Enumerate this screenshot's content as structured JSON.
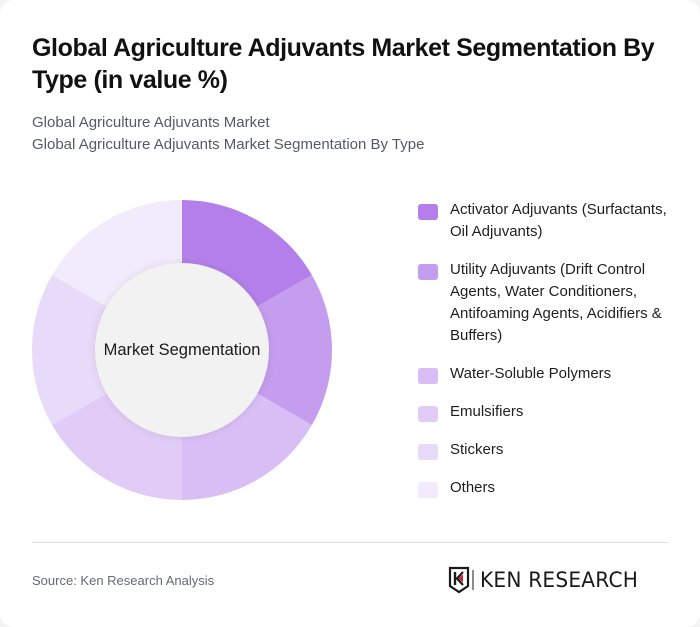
{
  "header": {
    "title": "Global Agriculture Adjuvants Market Segmentation By Type (in value %)",
    "subtitle_line1": "Global Agriculture Adjuvants Market",
    "subtitle_line2": "Global Agriculture Adjuvants Market Segmentation By Type"
  },
  "chart": {
    "center_label": "Market Segmentation"
  },
  "legend": {
    "items": [
      {
        "label": "Activator Adjuvants (Surfactants, Oil Adjuvants)",
        "color": "#B47FEA"
      },
      {
        "label": "Utility Adjuvants (Drift Control Agents, Water Conditioners, Antifoaming Agents, Acidifiers & Buffers)",
        "color": "#C59DEE"
      },
      {
        "label": "Water-Soluble Polymers",
        "color": "#D9BEF5"
      },
      {
        "label": "Emulsifiers",
        "color": "#E0CCF7"
      },
      {
        "label": "Stickers",
        "color": "#E8DAF9"
      },
      {
        "label": "Others",
        "color": "#F2EBFB"
      }
    ]
  },
  "footer": {
    "source": "Source: Ken Research Analysis",
    "logo_text": "KEN RESEARCH"
  },
  "chart_data": {
    "type": "pie",
    "title": "Global Agriculture Adjuvants Market Segmentation By Type (in value %)",
    "subtitle": "Global Agriculture Adjuvants Market Segmentation By Type",
    "center_label": "Market Segmentation",
    "donut": true,
    "categories": [
      "Activator Adjuvants (Surfactants, Oil Adjuvants)",
      "Utility Adjuvants (Drift Control Agents, Water Conditioners, Antifoaming Agents, Acidifiers & Buffers)",
      "Water-Soluble Polymers",
      "Emulsifiers",
      "Stickers",
      "Others"
    ],
    "values": [
      16.67,
      16.67,
      16.67,
      16.67,
      16.67,
      16.67
    ],
    "colors": [
      "#B47FEA",
      "#C59DEE",
      "#D9BEF5",
      "#E0CCF7",
      "#E8DAF9",
      "#F2EBFB"
    ],
    "legend_position": "right",
    "source": "Source: Ken Research Analysis"
  }
}
